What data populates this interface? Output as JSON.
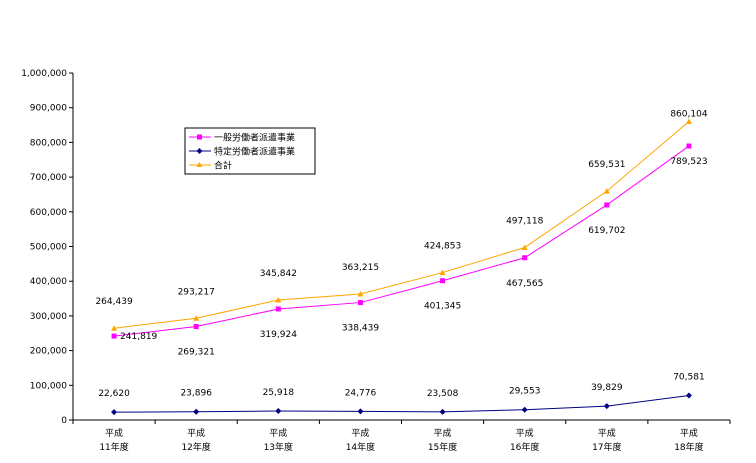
{
  "chart_data": {
    "type": "line",
    "categories": [
      [
        "平成",
        "11年度"
      ],
      [
        "平成",
        "12年度"
      ],
      [
        "平成",
        "13年度"
      ],
      [
        "平成",
        "14年度"
      ],
      [
        "平成",
        "15年度"
      ],
      [
        "平成",
        "16年度"
      ],
      [
        "平成",
        "17年度"
      ],
      [
        "平成",
        "18年度"
      ]
    ],
    "series": [
      {
        "name": "一般労働者派遣事業",
        "color": "#ff00ff",
        "marker": "square",
        "values": [
          241819,
          269321,
          319924,
          338439,
          401345,
          467565,
          619702,
          789523
        ],
        "labels": [
          "241,819",
          "269,321",
          "319,924",
          "338,439",
          "401,345",
          "467,565",
          "619,702",
          "789,523"
        ]
      },
      {
        "name": "特定労働者派遣事業",
        "color": "#000080",
        "marker": "diamond",
        "values": [
          22620,
          23896,
          25918,
          24776,
          23508,
          29553,
          39829,
          70581
        ],
        "labels": [
          "22,620",
          "23,896",
          "25,918",
          "24,776",
          "23,508",
          "29,553",
          "39,829",
          "70,581"
        ]
      },
      {
        "name": "合計",
        "color": "#ffa500",
        "marker": "triangle",
        "values": [
          264439,
          293217,
          345842,
          363215,
          424853,
          497118,
          659531,
          860104
        ],
        "labels": [
          "264,439",
          "293,217",
          "345,842",
          "363,215",
          "424,853",
          "497,118",
          "659,531",
          "860,104"
        ]
      }
    ],
    "yticks": [
      "0",
      "100,000",
      "200,000",
      "300,000",
      "400,000",
      "500,000",
      "600,000",
      "700,000",
      "800,000",
      "900,000",
      "1,000,000"
    ],
    "ylim": [
      0,
      1000000
    ],
    "legend_position": "top-left"
  }
}
